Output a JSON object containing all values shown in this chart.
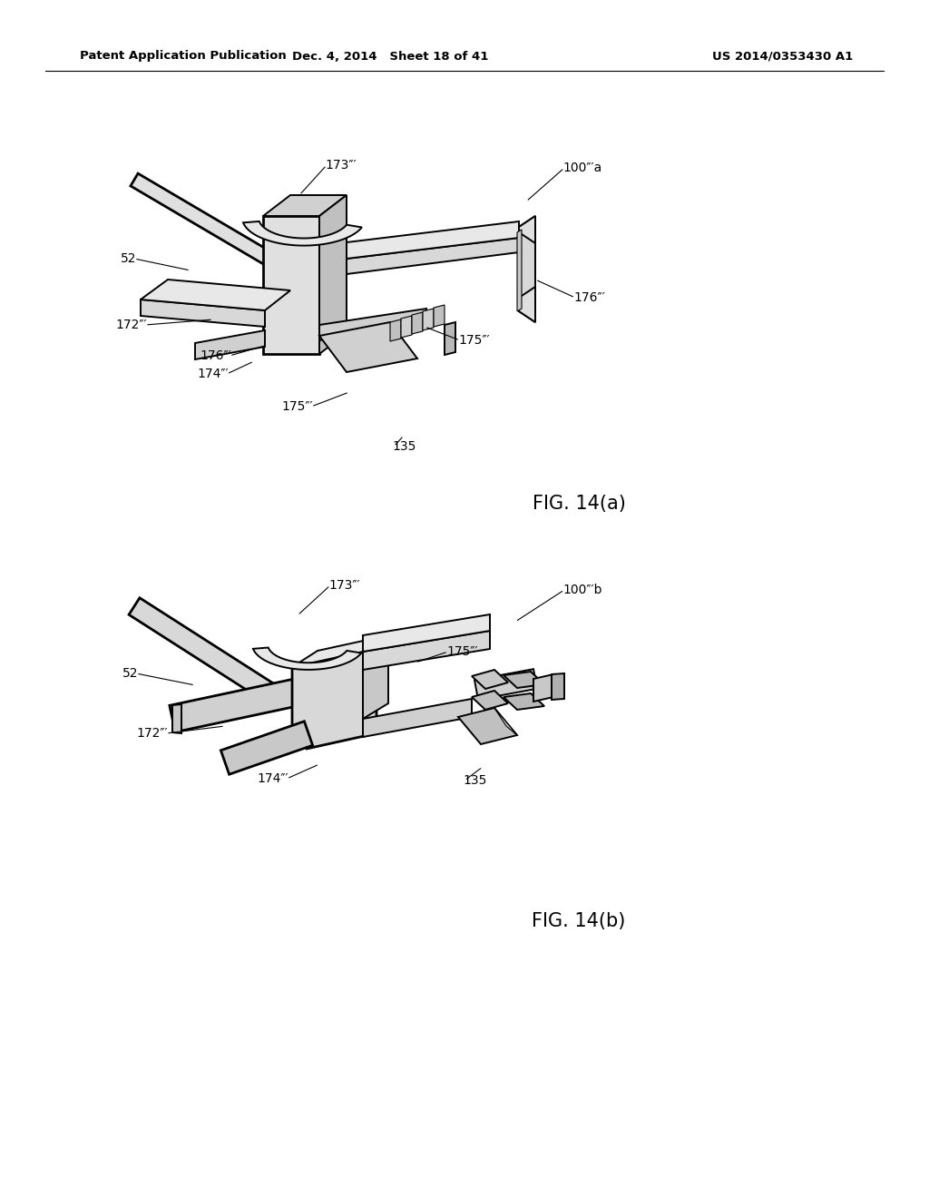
{
  "background_color": "#ffffff",
  "page_width": 10.24,
  "page_height": 13.2,
  "header": {
    "left": "Patent Application Publication",
    "center": "Dec. 4, 2014   Sheet 18 of 41",
    "right": "US 2014/0353430 A1",
    "fontsize": 9.5,
    "fontweight": "bold"
  },
  "fig_a_caption": "FIG. 14(a)",
  "fig_b_caption": "FIG. 14(b)",
  "line_color": "#000000",
  "label_fontsize": 10,
  "caption_fontsize": 15
}
